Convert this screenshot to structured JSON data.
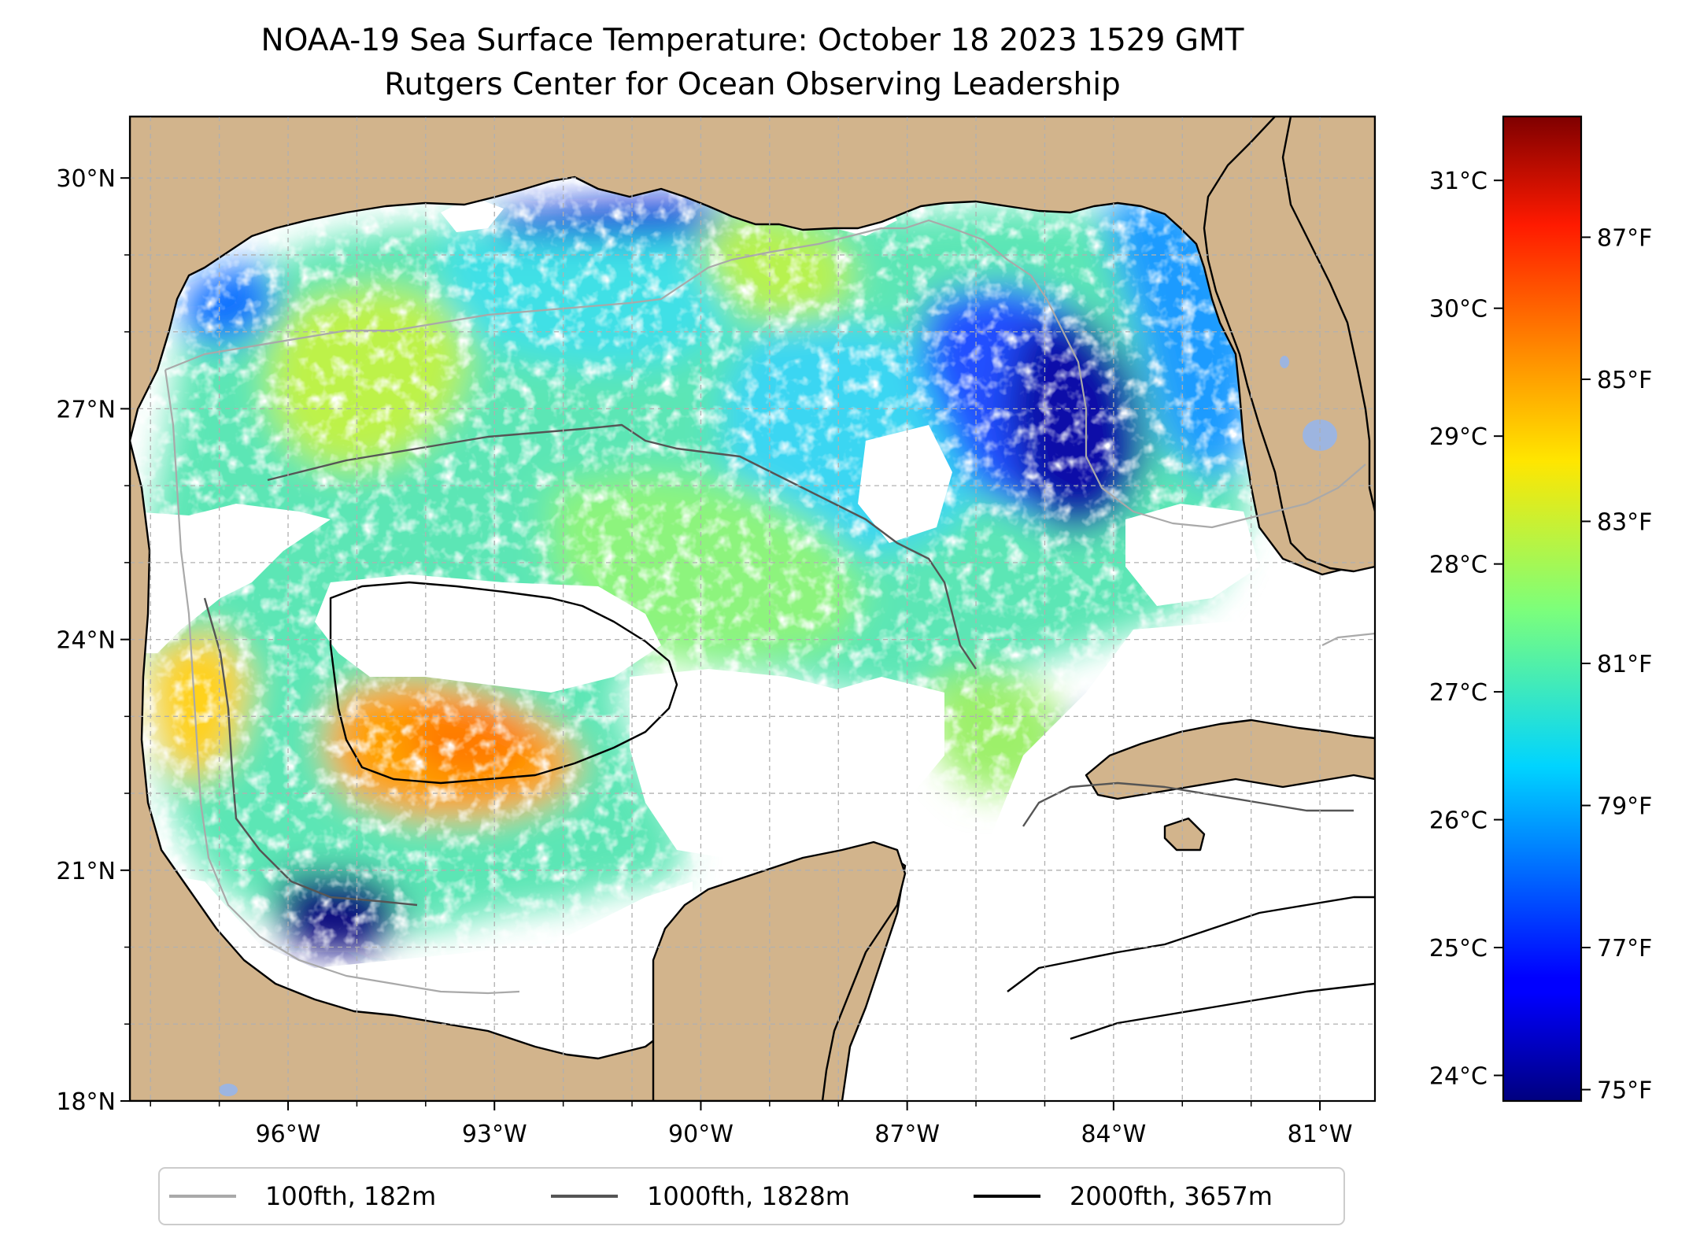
{
  "title": {
    "line1": "NOAA-19 Sea Surface Temperature: October 18 2023 1529 GMT",
    "line2": "Rutgers Center for Ocean Observing Leadership"
  },
  "map": {
    "region": "Gulf of Mexico",
    "lon_range": [
      -98.3,
      -80.2
    ],
    "lat_range": [
      18.0,
      30.8
    ],
    "gridlines": true,
    "lat_ticks": [
      {
        "value": 30,
        "label": "30°N"
      },
      {
        "value": 27,
        "label": "27°N"
      },
      {
        "value": 24,
        "label": "24°N"
      },
      {
        "value": 21,
        "label": "21°N"
      },
      {
        "value": 18,
        "label": "18°N"
      }
    ],
    "lon_ticks": [
      {
        "value": -96,
        "label": "96°W"
      },
      {
        "value": -93,
        "label": "93°W"
      },
      {
        "value": -90,
        "label": "90°W"
      },
      {
        "value": -87,
        "label": "87°W"
      },
      {
        "value": -84,
        "label": "84°W"
      },
      {
        "value": -81,
        "label": "81°W"
      }
    ],
    "colors": {
      "land": "#d2b48c",
      "lakes": "#9db5e0",
      "no_data": "#ffffff",
      "grid": "#b0b0b0"
    }
  },
  "colorbar": {
    "colormap": "jet",
    "celsius_range": [
      23.8,
      31.5
    ],
    "celsius_ticks": [
      {
        "value": 31,
        "label": "31°C"
      },
      {
        "value": 30,
        "label": "30°C"
      },
      {
        "value": 29,
        "label": "29°C"
      },
      {
        "value": 28,
        "label": "28°C"
      },
      {
        "value": 27,
        "label": "27°C"
      },
      {
        "value": 26,
        "label": "26°C"
      },
      {
        "value": 25,
        "label": "25°C"
      },
      {
        "value": 24,
        "label": "24°C"
      }
    ],
    "fahrenheit_ticks": [
      {
        "value": 87,
        "label": "87°F"
      },
      {
        "value": 85,
        "label": "85°F"
      },
      {
        "value": 83,
        "label": "83°F"
      },
      {
        "value": 81,
        "label": "81°F"
      },
      {
        "value": 79,
        "label": "79°F"
      },
      {
        "value": 77,
        "label": "77°F"
      },
      {
        "value": 75,
        "label": "75°F"
      }
    ]
  },
  "legend": {
    "items": [
      {
        "label": "100fth, 182m",
        "color": "#a9a9a9"
      },
      {
        "label": "1000fth, 1828m",
        "color": "#555555"
      },
      {
        "label": "2000fth, 3657m",
        "color": "#000000"
      }
    ]
  }
}
